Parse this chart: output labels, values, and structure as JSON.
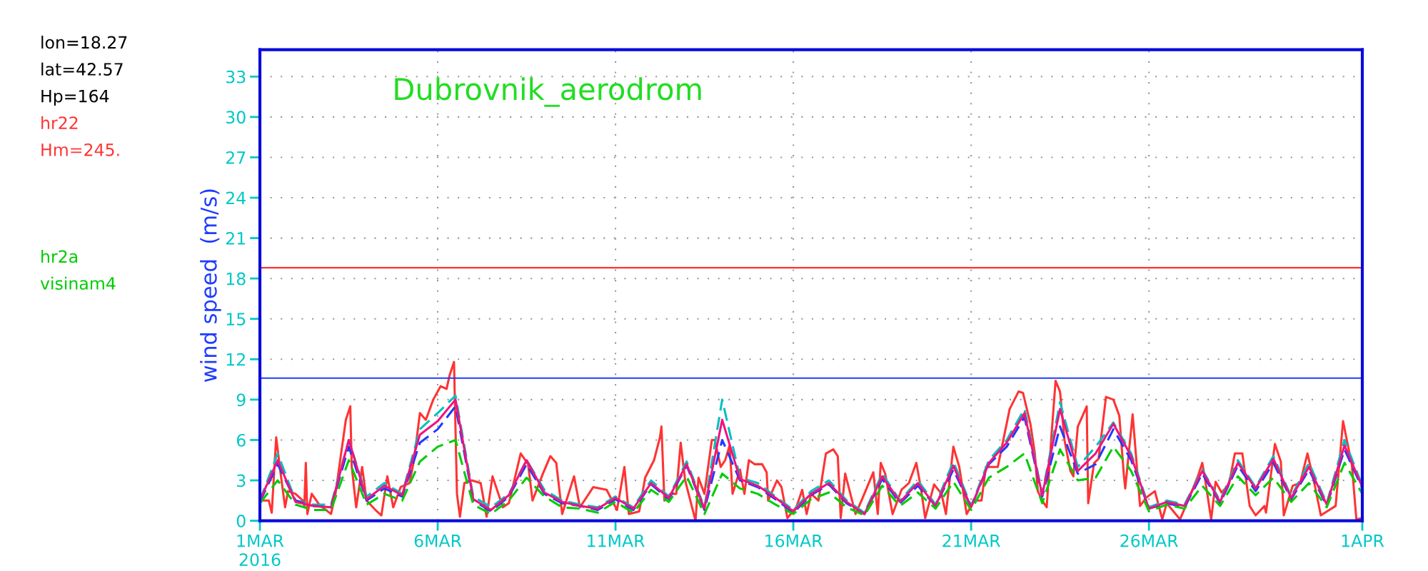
{
  "chart_data": {
    "type": "line",
    "title": "Dubrovnik_aerodrom",
    "ylabel": "wind speed  (m/s)",
    "annotations": [
      "lon=18.27",
      "lat=42.57",
      "Hp=164",
      "Hm=245.",
      "visinam4"
    ],
    "xlim": [
      "2016-03-01",
      "2016-04-01"
    ],
    "xticks": [
      {
        "value": "2016-03-01",
        "label": "1MAR\n2016"
      },
      {
        "value": "2016-03-06",
        "label": "6MAR"
      },
      {
        "value": "2016-03-11",
        "label": "11MAR"
      },
      {
        "value": "2016-03-16",
        "label": "16MAR"
      },
      {
        "value": "2016-03-21",
        "label": "21MAR"
      },
      {
        "value": "2016-03-26",
        "label": "26MAR"
      },
      {
        "value": "2016-04-01",
        "label": "1APR"
      }
    ],
    "ylim": [
      0,
      35
    ],
    "yticks": [
      0,
      3,
      6,
      9,
      12,
      15,
      18,
      21,
      24,
      27,
      30,
      33
    ],
    "grid": true,
    "legend": false,
    "ref_lines": [
      {
        "axis": "y",
        "value": 18.8,
        "color": "#ff3333"
      },
      {
        "axis": "y",
        "value": 10.6,
        "color": "#1e3cff"
      }
    ],
    "series": [
      {
        "name": "hr22",
        "color": "#ff3333",
        "line_style": "solid",
        "x": [
          "2016-03-01T00:00",
          "2016-03-01T06:00",
          "2016-03-01T08:00",
          "2016-03-01T11:00",
          "2016-03-01T14:00",
          "2016-03-01T17:00",
          "2016-03-01T19:00",
          "2016-03-02T00:00",
          "2016-03-02T05:00",
          "2016-03-02T06:00",
          "2016-03-02T07:00",
          "2016-03-02T08:00",
          "2016-03-02T11:00",
          "2016-03-02T16:00",
          "2016-03-03T00:00",
          "2016-03-03T03:00",
          "2016-03-03T10:00",
          "2016-03-03T13:00",
          "2016-03-03T14:00",
          "2016-03-03T17:00",
          "2016-03-03T21:00",
          "2016-03-04T00:00",
          "2016-03-04T06:00",
          "2016-03-04T10:00",
          "2016-03-04T14:00",
          "2016-03-04T18:00",
          "2016-03-04T23:00",
          "2016-03-05T05:00",
          "2016-03-05T08:00",
          "2016-03-05T12:00",
          "2016-03-05T16:00",
          "2016-03-05T21:00",
          "2016-03-06T02:00",
          "2016-03-06T06:00",
          "2016-03-06T08:00",
          "2016-03-06T11:00",
          "2016-03-06T13:00",
          "2016-03-06T15:00",
          "2016-03-06T18:00",
          "2016-03-06T23:00",
          "2016-03-07T05:00",
          "2016-03-07T09:00",
          "2016-03-07T13:00",
          "2016-03-07T20:00",
          "2016-03-08T00:00",
          "2016-03-08T08:00",
          "2016-03-08T13:00",
          "2016-03-08T16:00",
          "2016-03-08T23:00",
          "2016-03-09T04:00",
          "2016-03-09T08:00",
          "2016-03-09T12:00",
          "2016-03-09T20:00",
          "2016-03-10T00:00",
          "2016-03-10T09:00",
          "2016-03-10T18:00",
          "2016-03-11T01:00",
          "2016-03-11T06:00",
          "2016-03-11T09:00",
          "2016-03-11T16:00",
          "2016-03-11T20:00",
          "2016-03-12T02:00",
          "2016-03-12T06:00",
          "2016-03-12T07:00",
          "2016-03-12T09:00",
          "2016-03-12T13:00",
          "2016-03-12T17:00",
          "2016-03-12T20:00",
          "2016-03-12T23:00",
          "2016-03-13T06:00",
          "2016-03-13T08:00",
          "2016-03-13T12:00",
          "2016-03-13T17:00",
          "2016-03-13T19:00",
          "2016-03-13T23:00",
          "2016-03-14T02:00",
          "2016-03-14T05:00",
          "2016-03-14T07:00",
          "2016-03-14T12:00",
          "2016-03-14T15:00",
          "2016-03-14T18:00",
          "2016-03-14T22:00",
          "2016-03-15T03:00",
          "2016-03-15T06:00",
          "2016-03-15T07:00",
          "2016-03-15T13:00",
          "2016-03-15T16:00",
          "2016-03-15T20:00",
          "2016-03-16T02:00",
          "2016-03-16T06:00",
          "2016-03-16T09:00",
          "2016-03-16T12:00",
          "2016-03-16T17:00",
          "2016-03-16T22:00",
          "2016-03-17T03:00",
          "2016-03-17T06:00",
          "2016-03-17T08:00",
          "2016-03-17T11:00",
          "2016-03-17T18:00",
          "2016-03-17T22:00",
          "2016-03-18T06:00",
          "2016-03-18T09:00",
          "2016-03-18T11:00",
          "2016-03-18T14:00",
          "2016-03-18T19:00",
          "2016-03-19T01:00",
          "2016-03-19T06:00",
          "2016-03-19T11:00",
          "2016-03-19T14:00",
          "2016-03-19T17:00",
          "2016-03-19T23:00",
          "2016-03-20T04:00",
          "2016-03-20T07:00",
          "2016-03-20T12:00",
          "2016-03-20T16:00",
          "2016-03-20T21:00",
          "2016-03-21T02:00",
          "2016-03-21T07:00",
          "2016-03-21T10:00",
          "2016-03-21T18:00",
          "2016-03-22T02:00",
          "2016-03-22T08:00",
          "2016-03-22T11:00",
          "2016-03-22T16:00",
          "2016-03-22T19:00",
          "2016-03-22T21:00",
          "2016-03-23T00:00",
          "2016-03-23T03:00",
          "2016-03-23T06:00",
          "2016-03-23T09:00",
          "2016-03-23T12:00",
          "2016-03-23T15:00",
          "2016-03-23T19:00",
          "2016-03-23T21:00",
          "2016-03-24T00:00",
          "2016-03-24T06:00",
          "2016-03-24T07:00",
          "2016-03-24T11:00",
          "2016-03-24T14:00",
          "2016-03-24T19:00",
          "2016-03-25T00:00",
          "2016-03-25T04:00",
          "2016-03-25T07:00",
          "2016-03-25T08:00",
          "2016-03-25T13:00",
          "2016-03-25T18:00",
          "2016-03-25T22:00",
          "2016-03-26T04:00",
          "2016-03-26T09:00",
          "2016-03-26T12:00",
          "2016-03-26T21:00",
          "2016-03-27T05:00",
          "2016-03-27T09:00",
          "2016-03-27T12:00",
          "2016-03-27T14:00",
          "2016-03-27T18:00",
          "2016-03-27T21:00",
          "2016-03-28T01:00",
          "2016-03-28T06:00",
          "2016-03-28T10:00",
          "2016-03-28T15:00",
          "2016-03-28T20:00",
          "2016-03-29T00:00",
          "2016-03-29T06:00",
          "2016-03-29T07:00",
          "2016-03-29T13:00",
          "2016-03-29T17:00",
          "2016-03-29T19:00",
          "2016-03-30T01:00",
          "2016-03-30T06:00",
          "2016-03-30T11:00",
          "2016-03-30T16:00",
          "2016-03-30T20:00",
          "2016-03-31T06:00",
          "2016-03-31T11:00",
          "2016-03-31T17:00",
          "2016-03-31T20:00",
          "2016-04-01T00:00"
        ],
        "values": [
          1.5,
          1.5,
          0.6,
          6.2,
          3.5,
          1.0,
          2.2,
          2.0,
          1.5,
          1.1,
          4.3,
          0.5,
          2.0,
          1.2,
          0.5,
          2.0,
          7.5,
          8.5,
          4.0,
          1.0,
          4.0,
          1.5,
          0.8,
          0.4,
          3.3,
          1.0,
          2.5,
          2.8,
          4.5,
          8.0,
          7.5,
          9.0,
          10.0,
          9.8,
          10.8,
          11.8,
          2.0,
          0.3,
          2.8,
          3.0,
          2.8,
          0.3,
          3.3,
          1.0,
          1.3,
          5.0,
          4.2,
          1.5,
          3.5,
          4.8,
          4.3,
          0.5,
          3.3,
          1.0,
          2.5,
          2.3,
          0.8,
          4.0,
          0.5,
          0.7,
          3.2,
          4.5,
          6.2,
          7.0,
          1.5,
          2.0,
          2.0,
          5.8,
          3.0,
          0.0,
          3.2,
          2.0,
          6.0,
          6.0,
          4.0,
          4.5,
          5.6,
          2.0,
          3.8,
          2.0,
          4.5,
          4.2,
          4.2,
          3.6,
          1.5,
          3.0,
          2.5,
          0.2,
          1.0,
          2.3,
          0.5,
          2.0,
          1.5,
          5.0,
          5.3,
          4.8,
          0.2,
          3.5,
          0.5,
          1.5,
          3.6,
          0.5,
          4.3,
          3.5,
          0.5,
          2.3,
          2.8,
          4.3,
          2.5,
          0.2,
          2.7,
          2.0,
          0.5,
          5.5,
          4.0,
          0.5,
          1.5,
          1.5,
          4.0,
          4.0,
          8.3,
          9.6,
          9.5,
          7.2,
          5.0,
          2.2,
          1.5,
          1.0,
          6.0,
          10.4,
          9.6,
          6.0,
          3.7,
          3.3,
          7.0,
          8.5,
          1.3,
          4.3,
          4.6,
          9.2,
          9.0,
          7.8,
          3.5,
          2.4,
          7.9,
          1.1,
          1.7,
          2.2,
          0.1,
          1.3,
          0.1,
          2.2,
          3.3,
          4.3,
          3.0,
          0.1,
          2.9,
          2.1,
          2.7,
          5.0,
          5.0,
          1.1,
          0.4,
          1.1,
          0.6,
          5.7,
          4.4,
          0.4,
          2.6,
          2.8,
          5.0,
          2.6,
          0.4,
          1.1,
          7.4,
          4.1,
          0.1,
          0.2
        ]
      },
      {
        "color": "#00c0c0",
        "line_style": "dashed",
        "values": [
          1.5,
          5.0,
          1.5,
          1.2,
          1.2,
          6.0,
          1.8,
          2.8,
          2.0,
          6.8,
          8.0,
          9.3,
          1.8,
          1.0,
          2.0,
          4.5,
          2.3,
          1.5,
          1.2,
          1.0,
          1.8,
          1.0,
          3.0,
          1.8,
          4.4,
          1.0,
          9.0,
          3.2,
          2.8,
          1.8,
          0.8,
          2.2,
          3.0,
          1.5,
          0.6,
          3.5,
          1.5,
          3.0,
          1.2,
          4.4,
          1.1,
          4.5,
          6.0,
          8.3,
          2.0,
          8.8,
          4.0,
          5.5,
          7.3,
          5.0,
          1.0,
          1.5,
          1.2,
          3.8,
          1.5,
          4.5,
          2.5,
          4.8,
          1.8,
          4.3,
          1.3,
          6.0,
          2.6
        ]
      },
      {
        "color": "#1e3cff",
        "line_style": "dashed",
        "values": [
          1.4,
          4.2,
          1.5,
          1.1,
          1.0,
          5.5,
          1.5,
          2.4,
          1.8,
          5.8,
          6.8,
          8.5,
          1.5,
          0.7,
          1.8,
          4.2,
          2.0,
          1.3,
          1.1,
          0.8,
          1.6,
          0.8,
          2.7,
          1.6,
          4.1,
          0.8,
          6.0,
          3.0,
          2.5,
          1.6,
          0.6,
          1.9,
          2.7,
          1.3,
          0.5,
          3.1,
          1.3,
          2.6,
          1.1,
          3.8,
          1.0,
          4.2,
          5.5,
          7.7,
          1.8,
          7.0,
          3.5,
          4.2,
          6.8,
          4.5,
          0.9,
          1.3,
          1.0,
          3.5,
          1.3,
          4.1,
          2.2,
          4.3,
          1.6,
          3.8,
          1.1,
          5.3,
          2.4
        ]
      },
      {
        "color": "#f0147e",
        "line_style": "solid",
        "values": [
          1.5,
          4.5,
          1.4,
          1.1,
          1.0,
          6.0,
          1.6,
          2.6,
          1.9,
          6.4,
          7.4,
          9.0,
          1.6,
          0.8,
          1.9,
          4.5,
          2.1,
          1.4,
          1.1,
          0.9,
          1.7,
          0.9,
          2.8,
          1.7,
          4.2,
          0.9,
          7.5,
          3.1,
          2.6,
          1.7,
          0.7,
          2.0,
          2.8,
          1.4,
          0.5,
          3.3,
          1.4,
          2.8,
          1.1,
          4.1,
          1.0,
          4.3,
          5.8,
          8.0,
          1.9,
          8.3,
          3.7,
          5.0,
          7.2,
          4.8,
          0.9,
          1.4,
          1.1,
          3.7,
          1.4,
          4.3,
          2.4,
          4.6,
          1.7,
          4.0,
          1.2,
          5.6,
          2.5
        ]
      },
      {
        "name": "hr2a",
        "color": "#00cc00",
        "line_style": "dashed",
        "values": [
          1.3,
          3.0,
          1.2,
          0.8,
          0.8,
          4.5,
          1.2,
          2.0,
          1.5,
          4.4,
          5.5,
          6.0,
          1.2,
          0.5,
          1.5,
          3.2,
          1.8,
          1.0,
          0.9,
          0.6,
          1.4,
          0.6,
          2.3,
          1.4,
          3.3,
          0.5,
          3.5,
          2.4,
          2.0,
          1.2,
          0.5,
          1.6,
          2.1,
          1.0,
          0.4,
          2.6,
          1.1,
          2.1,
          0.9,
          2.9,
          0.8,
          3.2,
          4.0,
          5.0,
          1.3,
          5.3,
          3.0,
          3.2,
          5.5,
          3.7,
          0.7,
          1.2,
          0.9,
          2.6,
          1.1,
          3.3,
          1.9,
          3.2,
          1.4,
          2.8,
          1.0,
          4.3,
          2.0
        ]
      }
    ],
    "x": [
      "2016-03-01T00:00",
      "2016-03-01T12:00",
      "2016-03-02T00:00",
      "2016-03-02T12:00",
      "2016-03-03T00:00",
      "2016-03-03T12:00",
      "2016-03-04T00:00",
      "2016-03-04T12:00",
      "2016-03-05T00:00",
      "2016-03-05T12:00",
      "2016-03-06T00:00",
      "2016-03-06T12:00",
      "2016-03-07T00:00",
      "2016-03-07T12:00",
      "2016-03-08T00:00",
      "2016-03-08T12:00",
      "2016-03-09T00:00",
      "2016-03-09T12:00",
      "2016-03-10T00:00",
      "2016-03-10T12:00",
      "2016-03-11T00:00",
      "2016-03-11T12:00",
      "2016-03-12T00:00",
      "2016-03-12T12:00",
      "2016-03-13T00:00",
      "2016-03-13T12:00",
      "2016-03-14T00:00",
      "2016-03-14T12:00",
      "2016-03-15T00:00",
      "2016-03-15T12:00",
      "2016-03-16T00:00",
      "2016-03-16T12:00",
      "2016-03-17T00:00",
      "2016-03-17T12:00",
      "2016-03-18T00:00",
      "2016-03-18T12:00",
      "2016-03-19T00:00",
      "2016-03-19T12:00",
      "2016-03-20T00:00",
      "2016-03-20T12:00",
      "2016-03-21T00:00",
      "2016-03-21T12:00",
      "2016-03-22T00:00",
      "2016-03-22T12:00",
      "2016-03-23T00:00",
      "2016-03-23T12:00",
      "2016-03-24T00:00",
      "2016-03-24T12:00",
      "2016-03-25T00:00",
      "2016-03-25T12:00",
      "2016-03-26T00:00",
      "2016-03-26T12:00",
      "2016-03-27T00:00",
      "2016-03-27T12:00",
      "2016-03-28T00:00",
      "2016-03-28T12:00",
      "2016-03-29T00:00",
      "2016-03-29T12:00",
      "2016-03-30T00:00",
      "2016-03-30T12:00",
      "2016-03-31T00:00",
      "2016-03-31T12:00",
      "2016-04-01T00:00"
    ]
  }
}
